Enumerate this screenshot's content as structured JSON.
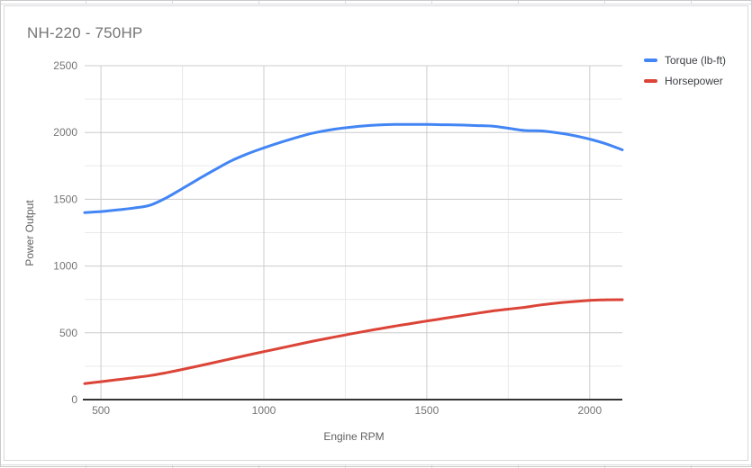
{
  "chart_data": {
    "type": "line",
    "title": "NH-220 - 750HP",
    "xlabel": "Engine RPM",
    "ylabel": "Power Output",
    "xlim": [
      450,
      2100
    ],
    "ylim": [
      0,
      2500
    ],
    "x_ticks": [
      500,
      1000,
      1500,
      2000
    ],
    "y_ticks": [
      0,
      500,
      1000,
      1500,
      2000,
      2500
    ],
    "x_minor_ticks": [
      750,
      1250,
      1750
    ],
    "y_minor_ticks": [
      250,
      750,
      1250,
      1750,
      2250
    ],
    "grid": true,
    "legend_position": "top-right",
    "x": [
      450,
      500,
      550,
      600,
      650,
      700,
      750,
      800,
      850,
      900,
      950,
      1000,
      1050,
      1100,
      1150,
      1200,
      1250,
      1300,
      1350,
      1400,
      1450,
      1500,
      1550,
      1600,
      1650,
      1700,
      1750,
      1800,
      1850,
      1900,
      1950,
      2000,
      2050,
      2100
    ],
    "series": [
      {
        "name": "Torque (lb-ft)",
        "color": "#4285f4",
        "values": [
          1400,
          1408,
          1420,
          1434,
          1455,
          1510,
          1580,
          1652,
          1722,
          1788,
          1840,
          1885,
          1925,
          1962,
          1995,
          2018,
          2035,
          2048,
          2056,
          2060,
          2060,
          2060,
          2058,
          2056,
          2052,
          2048,
          2032,
          2015,
          2012,
          1998,
          1978,
          1950,
          1915,
          1870
        ]
      },
      {
        "name": "Horsepower",
        "color": "#db4437",
        "values": [
          120,
          134,
          149,
          164,
          180,
          201,
          226,
          252,
          279,
          306,
          333,
          359,
          385,
          411,
          437,
          461,
          484,
          507,
          528,
          549,
          569,
          588,
          607,
          626,
          645,
          663,
          677,
          691,
          709,
          723,
          734,
          743,
          747,
          748
        ]
      }
    ]
  },
  "colors": {
    "major_grid": "#cccccc",
    "minor_grid": "#e9e9e9",
    "axis_line": "#333333",
    "tick_text": "#757575",
    "title_text": "#757575",
    "axis_title_text": "#616161",
    "legend_text": "#3c4043",
    "card_border": "#d9d9d9",
    "sheet_grid": "#dadce0"
  }
}
